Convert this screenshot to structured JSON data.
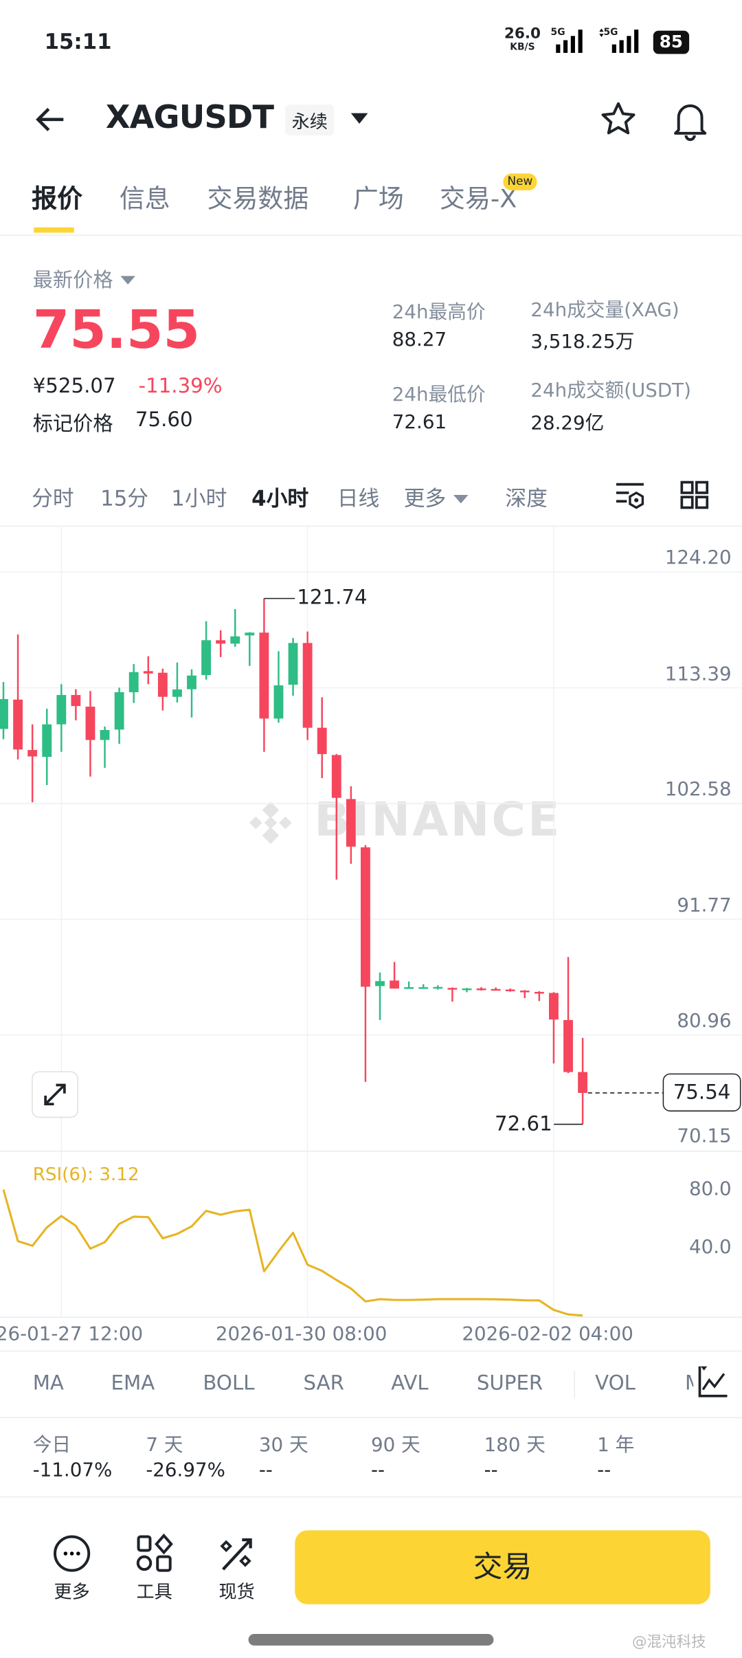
{
  "status_bar": {
    "time": "15:11",
    "net_speed": "26.0",
    "net_unit": "KB/S",
    "sim1": "5G",
    "sim2": "5G",
    "battery": "85"
  },
  "header": {
    "symbol": "XAGUSDT",
    "contract_type": "永续",
    "icons": [
      "back-arrow-icon",
      "caret-down-icon",
      "star-icon",
      "bell-icon"
    ]
  },
  "tabs": [
    {
      "label": "报价",
      "active": true
    },
    {
      "label": "信息"
    },
    {
      "label": "交易数据"
    },
    {
      "label": "广场"
    },
    {
      "label": "交易-X",
      "badge": "New"
    }
  ],
  "price": {
    "label": "最新价格",
    "last": "75.55",
    "cny": "¥525.07",
    "change_pct": "-11.39%",
    "mark_label": "标记价格",
    "mark_value": "75.60"
  },
  "stats": {
    "high_label": "24h最高价",
    "high": "88.27",
    "low_label": "24h最低价",
    "low": "72.61",
    "vol_label": "24h成交量(XAG)",
    "vol": "3,518.25万",
    "amount_label": "24h成交额(USDT)",
    "amount": "28.29亿"
  },
  "intervals": [
    "分时",
    "15分",
    "1小时",
    "4小时",
    "日线",
    "更多",
    "深度"
  ],
  "active_interval": "4小时",
  "colors": {
    "up": "#2ebd85",
    "down": "#f6465d",
    "accent": "#fcd535",
    "rsi": "#e6b422"
  },
  "watermark": "BINANCE",
  "chart_data": {
    "type": "candlestick",
    "interval": "4h",
    "y_axis_ticks": [
      "124.20",
      "113.39",
      "102.58",
      "91.77",
      "80.96",
      "70.15"
    ],
    "ylim": [
      70.15,
      124.2
    ],
    "x_tick_labels": [
      "26-01-27 12:00",
      "2026-01-30 08:00",
      "2026-02-02 04:00"
    ],
    "high_marker": "121.74",
    "low_marker": "72.61",
    "current_price": "75.54",
    "ohlc": [
      [
        109.55,
        113.94,
        108.59,
        112.34
      ],
      [
        112.29,
        118.38,
        106.7,
        107.63
      ],
      [
        107.58,
        109.98,
        102.7,
        106.98
      ],
      [
        106.94,
        111.44,
        104.31,
        109.98
      ],
      [
        109.98,
        113.73,
        107.41,
        112.72
      ],
      [
        112.72,
        113.26,
        110.35,
        111.69
      ],
      [
        111.63,
        113.09,
        105.1,
        108.52
      ],
      [
        108.52,
        109.77,
        105.91,
        109.45
      ],
      [
        109.49,
        113.41,
        108.16,
        112.98
      ],
      [
        112.98,
        115.61,
        111.97,
        114.86
      ],
      [
        114.95,
        116.34,
        113.73,
        114.73
      ],
      [
        114.8,
        115.18,
        111.27,
        112.55
      ],
      [
        112.55,
        115.76,
        112.02,
        113.24
      ],
      [
        113.26,
        115.12,
        110.62,
        114.54
      ],
      [
        114.58,
        119.62,
        114.16,
        117.84
      ],
      [
        117.84,
        118.76,
        116.26,
        117.52
      ],
      [
        117.52,
        120.75,
        117.22,
        118.2
      ],
      [
        118.29,
        118.59,
        115.44,
        118.55
      ],
      [
        118.55,
        121.74,
        107.41,
        110.52
      ],
      [
        110.52,
        116.81,
        110.13,
        113.62
      ],
      [
        113.68,
        118.05,
        112.66,
        117.58
      ],
      [
        117.58,
        118.65,
        108.52,
        109.66
      ],
      [
        109.66,
        112.51,
        104.95,
        107.2
      ],
      [
        107.11,
        107.2,
        95.47,
        103.11
      ],
      [
        103.0,
        104.2,
        96.95,
        98.55
      ],
      [
        98.49,
        98.7,
        76.57,
        85.46
      ],
      [
        85.52,
        86.79,
        82.35,
        85.99
      ],
      [
        86.04,
        87.77,
        85.29,
        85.29
      ],
      [
        85.35,
        85.95,
        85.35,
        85.42
      ],
      [
        85.35,
        85.7,
        85.35,
        85.42
      ],
      [
        85.35,
        85.6,
        85.2,
        85.44
      ],
      [
        85.35,
        85.4,
        84.07,
        85.2
      ],
      [
        85.2,
        85.35,
        84.95,
        85.3
      ],
      [
        85.3,
        85.42,
        85.1,
        85.18
      ],
      [
        85.25,
        85.4,
        85.1,
        85.15
      ],
      [
        85.2,
        85.3,
        85.0,
        85.08
      ],
      [
        85.1,
        85.15,
        84.4,
        84.98
      ],
      [
        84.98,
        85.05,
        84.12,
        84.88
      ],
      [
        84.88,
        84.95,
        78.29,
        82.4
      ],
      [
        82.35,
        88.24,
        77.39,
        77.49
      ],
      [
        77.49,
        80.68,
        72.61,
        75.54
      ]
    ],
    "rsi": {
      "label": "RSI(6): 3.12",
      "ticks": [
        "80.0",
        "40.0"
      ],
      "values": [
        81.4,
        49.4,
        46.5,
        57.9,
        65.0,
        58.9,
        44.7,
        48.7,
        60.1,
        64.6,
        64.3,
        51.1,
        53.9,
        58.6,
        68.2,
        65.8,
        67.9,
        68.9,
        30.6,
        43.0,
        54.6,
        34.7,
        30.9,
        25.2,
        19.9,
        11.9,
        13.3,
        12.8,
        12.8,
        13.0,
        13.3,
        13.3,
        13.3,
        13.3,
        13.2,
        13.0,
        12.6,
        12.5,
        6.6,
        3.8,
        3.12
      ]
    }
  },
  "indicators": [
    "MA",
    "EMA",
    "BOLL",
    "SAR",
    "AVL",
    "SUPER",
    "VOL",
    "M"
  ],
  "performance": [
    {
      "label": "今日",
      "value": "-11.07%"
    },
    {
      "label": "7 天",
      "value": "-26.97%"
    },
    {
      "label": "30 天",
      "value": "--"
    },
    {
      "label": "90 天",
      "value": "--"
    },
    {
      "label": "180 天",
      "value": "--"
    },
    {
      "label": "1 年",
      "value": "--"
    }
  ],
  "bottom_bar": {
    "more": "更多",
    "tools": "工具",
    "spot": "现货",
    "trade": "交易"
  },
  "corner_watermark": "@混沌科技"
}
